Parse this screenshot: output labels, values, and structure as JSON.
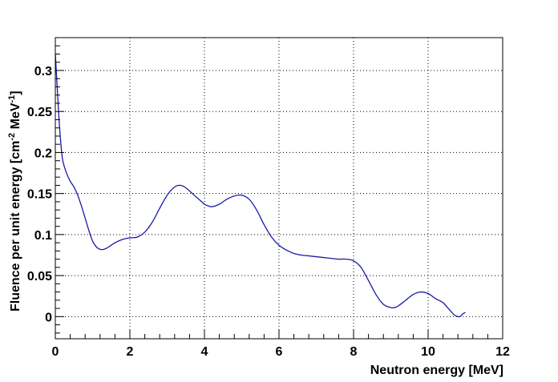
{
  "chart_data": {
    "type": "line",
    "xlabel": "Neutron energy [MeV]",
    "ylabel": {
      "prefix": "Fluence per unit energy [cm",
      "exp1": "-2",
      "middle": " MeV",
      "exp2": "-1",
      "suffix": "]"
    },
    "xlim": [
      0,
      12
    ],
    "ylim": [
      -0.027,
      0.34
    ],
    "x_ticks": [
      0,
      2,
      4,
      6,
      8,
      10,
      12
    ],
    "y_ticks": [
      0,
      0.05,
      0.1,
      0.15,
      0.2,
      0.25,
      0.3
    ],
    "x_tick_labels": [
      "0",
      "2",
      "4",
      "6",
      "8",
      "10",
      "12"
    ],
    "y_tick_labels": [
      "0",
      "0.05",
      "0.1",
      "0.15",
      "0.2",
      "0.25",
      "0.3"
    ],
    "grid": true,
    "grid_style": "dotted",
    "series": [
      {
        "color": "#1a1aa6",
        "x": [
          0.0,
          0.05,
          0.1,
          0.15,
          0.2,
          0.3,
          0.4,
          0.5,
          0.6,
          0.7,
          0.8,
          0.9,
          1.0,
          1.1,
          1.2,
          1.3,
          1.4,
          1.5,
          1.6,
          1.8,
          2.0,
          2.2,
          2.4,
          2.6,
          2.8,
          3.0,
          3.2,
          3.35,
          3.5,
          3.7,
          3.9,
          4.0,
          4.1,
          4.2,
          4.4,
          4.6,
          4.8,
          5.0,
          5.2,
          5.4,
          5.6,
          5.8,
          6.0,
          6.2,
          6.4,
          6.6,
          6.8,
          7.0,
          7.2,
          7.4,
          7.6,
          7.8,
          8.0,
          8.2,
          8.4,
          8.6,
          8.8,
          9.0,
          9.1,
          9.2,
          9.4,
          9.6,
          9.8,
          10.0,
          10.2,
          10.4,
          10.5,
          10.6,
          10.7,
          10.8,
          10.85,
          10.9,
          10.95,
          11.0
        ],
        "y": [
          0.32,
          0.28,
          0.24,
          0.21,
          0.19,
          0.175,
          0.165,
          0.158,
          0.148,
          0.135,
          0.12,
          0.105,
          0.092,
          0.085,
          0.082,
          0.082,
          0.084,
          0.087,
          0.09,
          0.094,
          0.096,
          0.097,
          0.103,
          0.115,
          0.132,
          0.148,
          0.158,
          0.16,
          0.157,
          0.149,
          0.141,
          0.137,
          0.135,
          0.134,
          0.137,
          0.143,
          0.147,
          0.148,
          0.143,
          0.13,
          0.112,
          0.097,
          0.087,
          0.081,
          0.077,
          0.075,
          0.074,
          0.073,
          0.072,
          0.071,
          0.07,
          0.07,
          0.068,
          0.06,
          0.044,
          0.027,
          0.015,
          0.011,
          0.011,
          0.013,
          0.02,
          0.027,
          0.03,
          0.028,
          0.022,
          0.017,
          0.012,
          0.007,
          0.002,
          0.0,
          0.0,
          0.002,
          0.004,
          0.005
        ]
      }
    ]
  }
}
